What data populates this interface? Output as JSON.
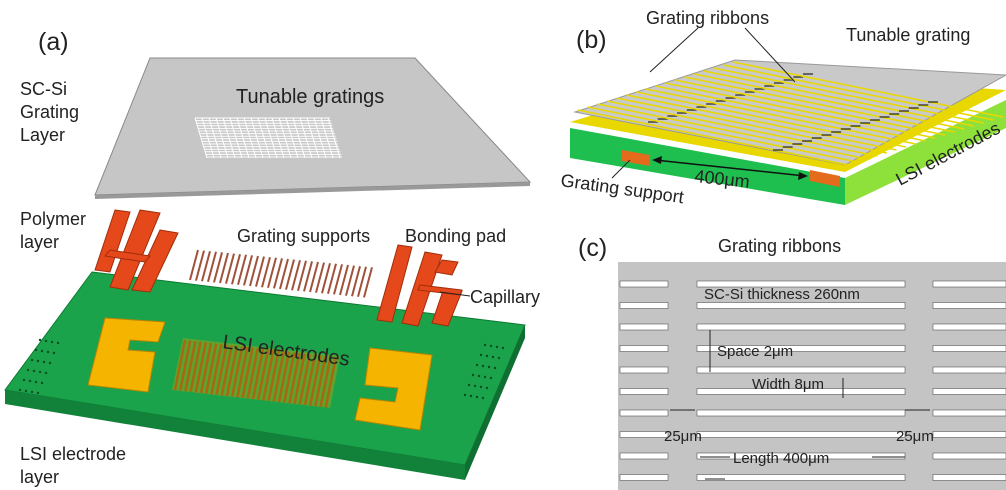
{
  "panel_a": {
    "label": "(a)",
    "grating_layer": {
      "label_lines": [
        "SC-Si",
        "Grating",
        "Layer"
      ]
    },
    "tunable_gratings": "Tunable gratings",
    "polymer_layer": {
      "label_lines": [
        "Polymer",
        "layer"
      ]
    },
    "grating_supports": "Grating supports",
    "bonding_pad": "Bonding pad",
    "capillary": "Capillary",
    "lsi_electrodes": "LSI electrodes",
    "electrode_layer": {
      "label_lines": [
        "LSI electrode",
        "layer"
      ]
    }
  },
  "panel_b": {
    "label": "(b)",
    "grating_ribbons": "Grating ribbons",
    "tunable_grating": "Tunable grating",
    "lsi_electrodes": "LSI electrodes",
    "length": "400μm",
    "grating_support": "Grating support"
  },
  "panel_c": {
    "label": "(c)",
    "grating_ribbons": "Grating ribbons",
    "thickness": "SC-Si thickness 260nm",
    "space": "Space 2μm",
    "width": "Width 8μm",
    "gap_left": "25μm",
    "gap_right": "25μm",
    "length": "Length 400μm"
  }
}
